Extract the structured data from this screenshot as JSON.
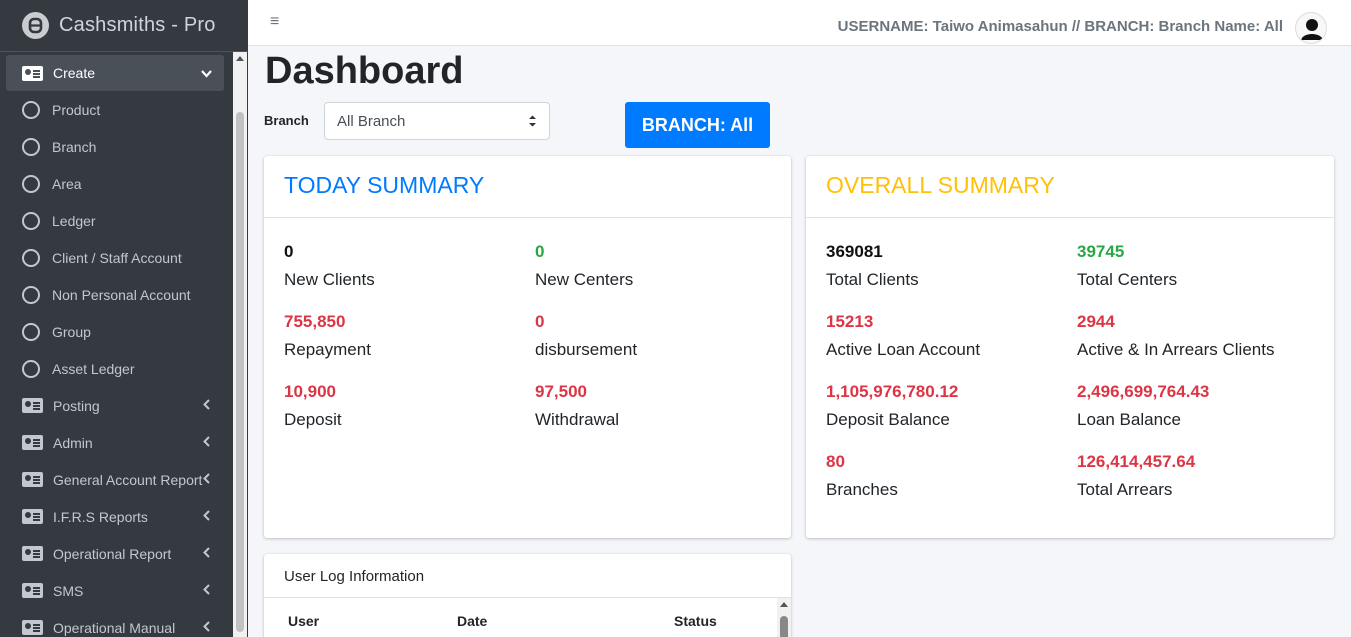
{
  "app": {
    "brand": "Cashsmiths - Pro"
  },
  "sidebar": {
    "items": [
      {
        "label": "Create",
        "icon": "id-card-icon",
        "active": true,
        "chevron": "⌄"
      },
      {
        "label": "Product",
        "icon": "circle-icon"
      },
      {
        "label": "Branch",
        "icon": "circle-icon"
      },
      {
        "label": "Area",
        "icon": "circle-icon"
      },
      {
        "label": "Ledger",
        "icon": "circle-icon"
      },
      {
        "label": "Client / Staff Account",
        "icon": "circle-icon"
      },
      {
        "label": "Non Personal Account",
        "icon": "circle-icon"
      },
      {
        "label": "Group",
        "icon": "circle-icon"
      },
      {
        "label": "Asset Ledger",
        "icon": "circle-icon"
      },
      {
        "label": "Posting",
        "icon": "id-card-icon",
        "chevron": "‹"
      },
      {
        "label": "Admin",
        "icon": "id-card-icon",
        "chevron": "‹"
      },
      {
        "label": "General Account Report",
        "icon": "id-card-icon",
        "chevron": "‹"
      },
      {
        "label": "I.F.R.S Reports",
        "icon": "id-card-icon",
        "chevron": "‹"
      },
      {
        "label": "Operational Report",
        "icon": "id-card-icon",
        "chevron": "‹"
      },
      {
        "label": "SMS",
        "icon": "id-card-icon",
        "chevron": "‹"
      },
      {
        "label": "Operational Manual",
        "icon": "id-card-icon",
        "chevron": "‹"
      }
    ]
  },
  "topbar": {
    "menu_icon": "≡",
    "user_info": "USERNAME: Taiwo Animasahun // BRANCH: Branch Name: All"
  },
  "page": {
    "title": "Dashboard",
    "branch_label": "Branch",
    "branch_select_value": "All Branch",
    "branch_button": "BRANCH: All"
  },
  "today_summary": {
    "title": "TODAY SUMMARY",
    "stats": [
      {
        "value": "0",
        "label": "New Clients",
        "color": "#111111"
      },
      {
        "value": "0",
        "label": "New Centers",
        "color": "#28a745"
      },
      {
        "value": "755,850",
        "label": "Repayment",
        "color": "#dc3545"
      },
      {
        "value": "0",
        "label": "disbursement",
        "color": "#dc3545"
      },
      {
        "value": "10,900",
        "label": "Deposit",
        "color": "#dc3545"
      },
      {
        "value": "97,500",
        "label": "Withdrawal",
        "color": "#dc3545"
      }
    ]
  },
  "overall_summary": {
    "title": "OVERALL SUMMARY",
    "stats": [
      {
        "value": "369081",
        "label": "Total Clients",
        "color": "#111111"
      },
      {
        "value": "39745",
        "label": "Total Centers",
        "color": "#28a745"
      },
      {
        "value": "15213",
        "label": "Active Loan Account",
        "color": "#dc3545"
      },
      {
        "value": "2944",
        "label": "Active & In Arrears Clients",
        "color": "#dc3545"
      },
      {
        "value": "1,105,976,780.12",
        "label": "Deposit Balance",
        "color": "#dc3545"
      },
      {
        "value": "2,496,699,764.43",
        "label": "Loan Balance",
        "color": "#dc3545"
      },
      {
        "value": "80",
        "label": "Branches",
        "color": "#dc3545"
      },
      {
        "value": "126,414,457.64",
        "label": "Total Arrears",
        "color": "#dc3545"
      }
    ]
  },
  "user_log": {
    "title": "User Log Information",
    "columns": [
      "User",
      "Date",
      "Status"
    ]
  }
}
